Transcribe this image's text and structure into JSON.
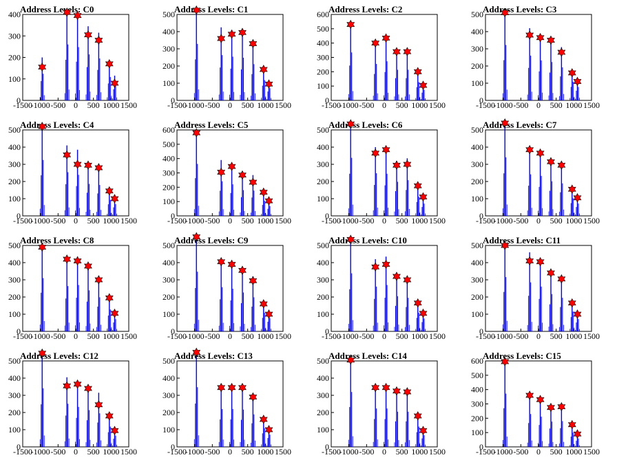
{
  "chart_data": [
    {
      "type": "bar",
      "title": "Address Levels: C0",
      "xlim": [
        -1500,
        1500
      ],
      "ylim": [
        0,
        400
      ],
      "yticks": [
        0,
        100,
        200,
        300,
        400
      ],
      "xticks": [
        -1500,
        -1000,
        -500,
        0,
        500,
        1000,
        1500
      ],
      "levels": [
        -950,
        -250,
        50,
        350,
        650,
        950,
        1100
      ],
      "peaks": [
        200,
        420,
        400,
        345,
        315,
        175,
        115
      ],
      "stars": [
        155,
        410,
        395,
        305,
        280,
        170,
        80
      ]
    },
    {
      "type": "bar",
      "title": "Address Levels: C1",
      "xlim": [
        -1500,
        1500
      ],
      "ylim": [
        0,
        500
      ],
      "yticks": [
        0,
        100,
        200,
        300,
        400,
        500
      ],
      "xticks": [
        -1500,
        -1000,
        -500,
        0,
        500,
        1000,
        1500
      ],
      "levels": [
        -950,
        -250,
        50,
        350,
        650,
        950,
        1100
      ],
      "peaks": [
        530,
        425,
        410,
        400,
        340,
        190,
        115
      ],
      "stars": [
        525,
        360,
        385,
        395,
        330,
        180,
        95
      ]
    },
    {
      "type": "bar",
      "title": "Address Levels: C2",
      "xlim": [
        -1500,
        1500
      ],
      "ylim": [
        0,
        600
      ],
      "yticks": [
        0,
        100,
        200,
        300,
        400,
        500,
        600
      ],
      "xticks": [
        -1500,
        -1000,
        -500,
        0,
        500,
        1000,
        1500
      ],
      "levels": [
        -950,
        -250,
        50,
        350,
        650,
        950,
        1100
      ],
      "peaks": [
        540,
        410,
        440,
        345,
        345,
        205,
        120
      ],
      "stars": [
        530,
        400,
        435,
        340,
        340,
        200,
        105
      ]
    },
    {
      "type": "bar",
      "title": "Address Levels: C3",
      "xlim": [
        -1500,
        1500
      ],
      "ylim": [
        0,
        500
      ],
      "yticks": [
        0,
        100,
        200,
        300,
        400,
        500
      ],
      "xticks": [
        -1500,
        -1000,
        -500,
        0,
        500,
        1000,
        1500
      ],
      "levels": [
        -950,
        -250,
        50,
        350,
        650,
        950,
        1100
      ],
      "peaks": [
        520,
        420,
        375,
        360,
        310,
        175,
        125
      ],
      "stars": [
        510,
        380,
        365,
        350,
        280,
        160,
        110
      ]
    },
    {
      "type": "bar",
      "title": "Address Levels: C4",
      "xlim": [
        -1500,
        1500
      ],
      "ylim": [
        0,
        500
      ],
      "yticks": [
        0,
        100,
        200,
        300,
        400,
        500
      ],
      "xticks": [
        -1500,
        -1000,
        -500,
        0,
        500,
        1000,
        1500
      ],
      "levels": [
        -950,
        -250,
        50,
        350,
        650,
        950,
        1100
      ],
      "peaks": [
        525,
        410,
        385,
        300,
        290,
        150,
        110
      ],
      "stars": [
        520,
        355,
        300,
        295,
        280,
        145,
        100
      ]
    },
    {
      "type": "bar",
      "title": "Address Levels: C5",
      "xlim": [
        -1500,
        1500
      ],
      "ylim": [
        0,
        600
      ],
      "yticks": [
        0,
        100,
        200,
        300,
        400,
        500,
        600
      ],
      "xticks": [
        -1500,
        -1000,
        -500,
        0,
        500,
        1000,
        1500
      ],
      "levels": [
        -950,
        -250,
        50,
        350,
        650,
        950,
        1100
      ],
      "peaks": [
        585,
        390,
        355,
        290,
        285,
        170,
        110
      ],
      "stars": [
        580,
        305,
        345,
        285,
        235,
        165,
        105
      ]
    },
    {
      "type": "bar",
      "title": "Address Levels: C6",
      "xlim": [
        -1500,
        1500
      ],
      "ylim": [
        0,
        500
      ],
      "yticks": [
        0,
        100,
        200,
        300,
        400,
        500
      ],
      "xticks": [
        -1500,
        -1000,
        -500,
        0,
        500,
        1000,
        1500
      ],
      "levels": [
        -950,
        -250,
        50,
        350,
        650,
        950,
        1100
      ],
      "peaks": [
        545,
        400,
        395,
        320,
        335,
        180,
        115
      ],
      "stars": [
        535,
        365,
        385,
        295,
        300,
        175,
        110
      ]
    },
    {
      "type": "bar",
      "title": "Address Levels: C7",
      "xlim": [
        -1500,
        1500
      ],
      "ylim": [
        0,
        500
      ],
      "yticks": [
        0,
        100,
        200,
        300,
        400,
        500
      ],
      "xticks": [
        -1500,
        -1000,
        -500,
        0,
        500,
        1000,
        1500
      ],
      "levels": [
        -950,
        -250,
        50,
        350,
        650,
        950,
        1100
      ],
      "peaks": [
        550,
        390,
        375,
        325,
        305,
        165,
        115
      ],
      "stars": [
        540,
        385,
        365,
        315,
        295,
        155,
        105
      ]
    },
    {
      "type": "bar",
      "title": "Address Levels: C8",
      "xlim": [
        -1500,
        1500
      ],
      "ylim": [
        0,
        500
      ],
      "yticks": [
        0,
        100,
        200,
        300,
        400,
        500
      ],
      "xticks": [
        -1500,
        -1000,
        -500,
        0,
        500,
        1000,
        1500
      ],
      "levels": [
        -950,
        -250,
        50,
        350,
        650,
        950,
        1100
      ],
      "peaks": [
        500,
        425,
        435,
        385,
        320,
        205,
        115
      ],
      "stars": [
        490,
        420,
        410,
        380,
        300,
        195,
        105
      ]
    },
    {
      "type": "bar",
      "title": "Address Levels: C9",
      "xlim": [
        -1500,
        1500
      ],
      "ylim": [
        0,
        500
      ],
      "yticks": [
        0,
        100,
        200,
        300,
        400,
        500
      ],
      "xticks": [
        -1500,
        -1000,
        -500,
        0,
        500,
        1000,
        1500
      ],
      "levels": [
        -950,
        -250,
        50,
        350,
        650,
        950,
        1100
      ],
      "peaks": [
        560,
        415,
        400,
        365,
        320,
        175,
        125
      ],
      "stars": [
        550,
        405,
        390,
        355,
        295,
        160,
        100
      ]
    },
    {
      "type": "bar",
      "title": "Address Levels: C10",
      "xlim": [
        -1500,
        1500
      ],
      "ylim": [
        0,
        500
      ],
      "yticks": [
        0,
        100,
        200,
        300,
        400,
        500
      ],
      "xticks": [
        -1500,
        -1000,
        -500,
        0,
        500,
        1000,
        1500
      ],
      "levels": [
        -950,
        -250,
        50,
        350,
        650,
        950,
        1100
      ],
      "peaks": [
        545,
        420,
        435,
        330,
        315,
        175,
        120
      ],
      "stars": [
        535,
        375,
        390,
        320,
        300,
        165,
        105
      ]
    },
    {
      "type": "bar",
      "title": "Address Levels: C11",
      "xlim": [
        -1500,
        1500
      ],
      "ylim": [
        0,
        500
      ],
      "yticks": [
        0,
        100,
        200,
        300,
        400,
        500
      ],
      "xticks": [
        -1500,
        -1000,
        -500,
        0,
        500,
        1000,
        1500
      ],
      "levels": [
        -950,
        -250,
        50,
        350,
        650,
        950,
        1100
      ],
      "peaks": [
        510,
        460,
        420,
        350,
        315,
        185,
        115
      ],
      "stars": [
        500,
        410,
        405,
        340,
        305,
        165,
        100
      ]
    },
    {
      "type": "bar",
      "title": "Address Levels: C12",
      "xlim": [
        -1500,
        1500
      ],
      "ylim": [
        0,
        500
      ],
      "yticks": [
        0,
        100,
        200,
        300,
        400,
        500
      ],
      "xticks": [
        -1500,
        -1000,
        -500,
        0,
        500,
        1000,
        1500
      ],
      "levels": [
        -950,
        -250,
        50,
        350,
        650,
        950,
        1100
      ],
      "peaks": [
        550,
        405,
        375,
        345,
        315,
        190,
        105
      ],
      "stars": [
        545,
        355,
        365,
        340,
        245,
        180,
        95
      ]
    },
    {
      "type": "bar",
      "title": "Address Levels: C13",
      "xlim": [
        -1500,
        1500
      ],
      "ylim": [
        0,
        500
      ],
      "yticks": [
        0,
        100,
        200,
        300,
        400,
        500
      ],
      "xticks": [
        -1500,
        -1000,
        -500,
        0,
        500,
        1000,
        1500
      ],
      "levels": [
        -950,
        -250,
        50,
        350,
        650,
        950,
        1100
      ],
      "peaks": [
        560,
        355,
        355,
        350,
        305,
        175,
        115
      ],
      "stars": [
        550,
        345,
        345,
        345,
        290,
        160,
        100
      ]
    },
    {
      "type": "bar",
      "title": "Address Levels: C14",
      "xlim": [
        -1500,
        1500
      ],
      "ylim": [
        0,
        500
      ],
      "yticks": [
        0,
        100,
        200,
        300,
        400,
        500
      ],
      "xticks": [
        -1500,
        -1000,
        -500,
        0,
        500,
        1000,
        1500
      ],
      "levels": [
        -950,
        -250,
        50,
        350,
        650,
        950,
        1100
      ],
      "peaks": [
        515,
        360,
        360,
        330,
        330,
        190,
        110
      ],
      "stars": [
        505,
        345,
        345,
        325,
        320,
        180,
        95
      ]
    },
    {
      "type": "bar",
      "title": "Address Levels: C15",
      "xlim": [
        -1500,
        1500
      ],
      "ylim": [
        0,
        600
      ],
      "yticks": [
        0,
        100,
        200,
        300,
        400,
        500,
        600
      ],
      "xticks": [
        -1500,
        -1000,
        -500,
        0,
        500,
        1000,
        1500
      ],
      "levels": [
        -950,
        -250,
        50,
        350,
        650,
        950,
        1100
      ],
      "peaks": [
        600,
        370,
        340,
        285,
        290,
        160,
        95
      ],
      "stars": [
        595,
        360,
        330,
        275,
        280,
        155,
        90
      ]
    }
  ],
  "colors": {
    "bars": "#0000ff",
    "stars": "#ff0000",
    "axes": "#000000",
    "grid": "none"
  }
}
